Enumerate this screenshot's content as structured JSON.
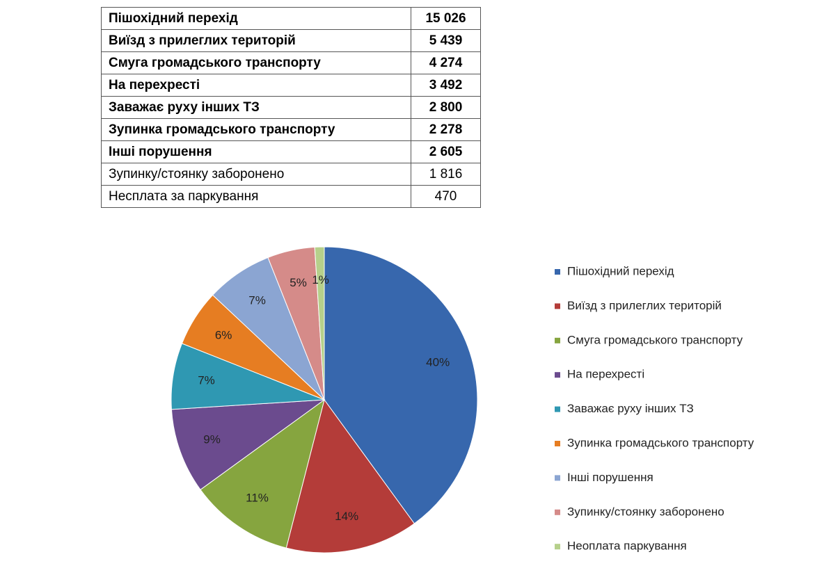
{
  "table": {
    "rows": [
      {
        "label": "Пішохідний перехід",
        "value": "15 026",
        "bold": true
      },
      {
        "label": "Виїзд з прилеглих територій",
        "value": "5 439",
        "bold": true
      },
      {
        "label": "Смуга громадського транспорту",
        "value": "4 274",
        "bold": true
      },
      {
        "label": "На перехресті",
        "value": "3 492",
        "bold": true
      },
      {
        "label": "Заважає руху інших ТЗ",
        "value": "2 800",
        "bold": true
      },
      {
        "label": "Зупинка громадського транспорту",
        "value": "2 278",
        "bold": true
      },
      {
        "label": "Інші порушення",
        "value": "2 605",
        "bold": true
      },
      {
        "label": "Зупинку/стоянку заборонено",
        "value": "1 816",
        "bold": false
      },
      {
        "label": "Несплата за паркування",
        "value": "470",
        "bold": false
      }
    ]
  },
  "chart_data": {
    "type": "pie",
    "categories": [
      "Пішохідний перехід",
      "Виїзд з прилеглих територій",
      "Смуга громадського транспорту",
      "На перехресті",
      "Заважає руху інших ТЗ",
      "Зупинка громадського транспорту",
      "Інші порушення",
      "Зупинку/стоянку заборонено",
      "Неоплата паркування"
    ],
    "values": [
      40,
      14,
      11,
      9,
      7,
      6,
      7,
      5,
      1
    ],
    "value_labels": [
      "40%",
      "14%",
      "11%",
      "9%",
      "7%",
      "6%",
      "7%",
      "5%",
      "1%"
    ],
    "colors": [
      "#3767ad",
      "#b43c39",
      "#86a53f",
      "#6b4b8e",
      "#2f98b2",
      "#e67d22",
      "#8ba5d2",
      "#d58b89",
      "#b6d08b"
    ],
    "legend": "right"
  }
}
